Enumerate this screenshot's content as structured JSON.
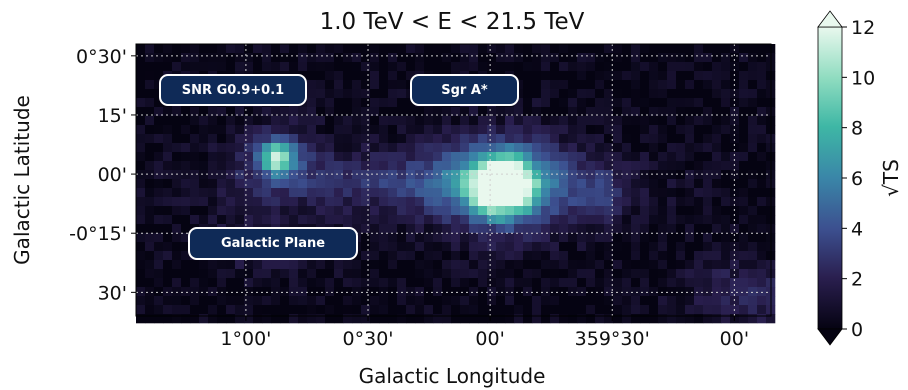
{
  "chart_data": {
    "type": "heatmap",
    "title": "1.0 TeV < E < 21.5 TeV",
    "xlabel": "Galactic Longitude",
    "ylabel": "Galactic Latitude",
    "x_ticks": [
      "1°00'",
      "0°30'",
      "00'",
      "359°30'",
      "00'"
    ],
    "y_ticks": [
      "0°30'",
      "15'",
      "00'",
      "-0°15'",
      "30'"
    ],
    "x_tick_values_deg": [
      1.0,
      0.5,
      0.0,
      -0.5,
      -1.0
    ],
    "y_tick_values_deg": [
      0.5,
      0.25,
      0.0,
      -0.25,
      -0.5
    ],
    "xlim_deg": [
      1.45,
      -1.15
    ],
    "ylim_deg": [
      0.55,
      -0.6
    ],
    "grid": true,
    "colorbar": {
      "label": "√TS",
      "range": [
        0,
        12
      ],
      "ticks": [
        "0",
        "2",
        "4",
        "6",
        "8",
        "10",
        "12"
      ],
      "extend": "both",
      "colormap": [
        "#050312",
        "#2a1f4f",
        "#3c4f8f",
        "#3a86a8",
        "#3eb7a5",
        "#8fdcc0",
        "#e9f8ee"
      ]
    },
    "sources": [
      {
        "name": "Sgr A*",
        "l_deg": -0.05,
        "b_deg": -0.05,
        "peak_sqrt_ts": 12
      },
      {
        "name": "SNR G0.9+0.1",
        "l_deg": 0.87,
        "b_deg": 0.07,
        "peak_sqrt_ts": 8
      }
    ],
    "annotations": [
      "SNR G0.9+0.1",
      "Sgr A*",
      "Galactic Plane"
    ]
  }
}
